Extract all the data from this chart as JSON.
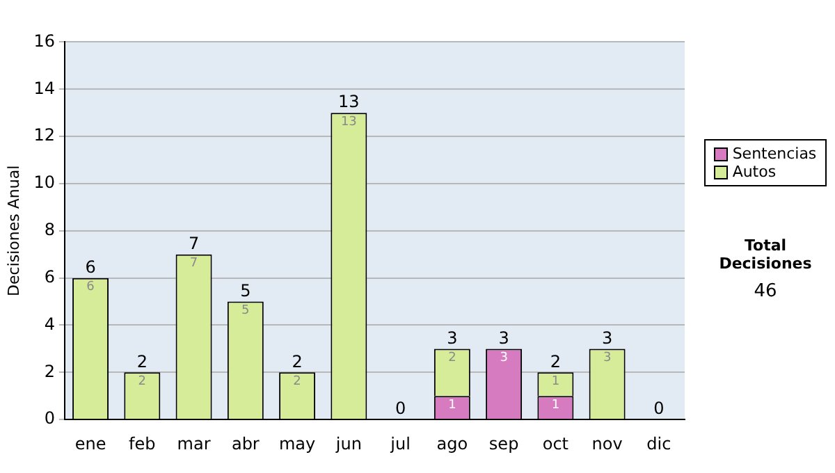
{
  "chart_data": {
    "type": "bar",
    "stacked": true,
    "ylabel": "Decisiones Anual",
    "categories": [
      "ene",
      "feb",
      "mar",
      "abr",
      "may",
      "jun",
      "jul",
      "ago",
      "sep",
      "oct",
      "nov",
      "dic"
    ],
    "series": [
      {
        "name": "Sentencias",
        "color": "#d77bc0",
        "values": [
          0,
          0,
          0,
          0,
          0,
          0,
          0,
          1,
          3,
          1,
          0,
          0
        ],
        "value_labels": [
          null,
          null,
          null,
          null,
          null,
          null,
          null,
          "1",
          "3",
          "1",
          null,
          null
        ]
      },
      {
        "name": "Autos",
        "color": "#d7ec98",
        "values": [
          6,
          2,
          7,
          5,
          2,
          13,
          0,
          2,
          0,
          1,
          3,
          0
        ],
        "value_labels": [
          "6",
          "2",
          "7",
          "5",
          "2",
          "13",
          null,
          "2",
          null,
          "1",
          "3",
          null
        ]
      }
    ],
    "totals": [
      "6",
      "2",
      "7",
      "5",
      "2",
      "13",
      "0",
      "3",
      "3",
      "2",
      "3",
      "0"
    ],
    "ylim": [
      0,
      16
    ],
    "yticks": [
      0,
      2,
      4,
      6,
      8,
      10,
      12,
      14,
      16
    ],
    "grid": "y",
    "legend": "right",
    "annotations": [
      "Total Decisiones",
      "46"
    ]
  }
}
